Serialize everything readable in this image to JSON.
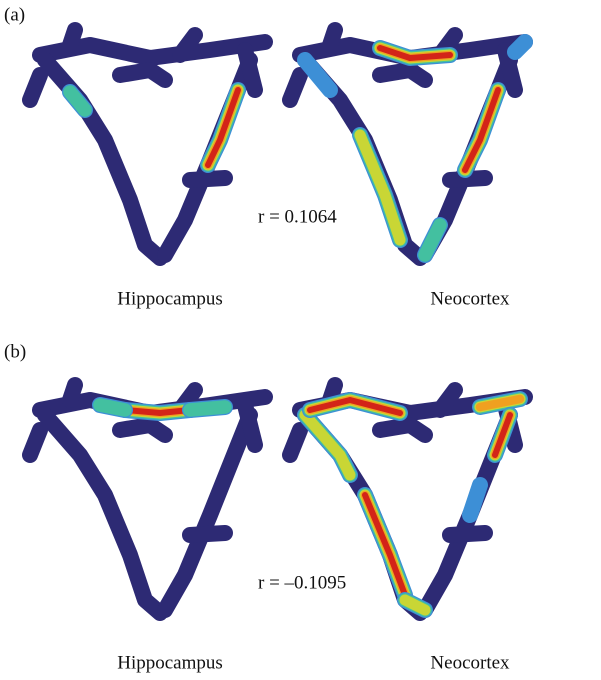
{
  "panels": [
    {
      "label": "(a)",
      "correlation": "r = 0.1064",
      "captions": [
        "Hippocampus",
        "Neocortex"
      ]
    },
    {
      "label": "(b)",
      "correlation": "r = –0.1095",
      "captions": [
        "Hippocampus",
        "Neocortex"
      ]
    }
  ]
}
